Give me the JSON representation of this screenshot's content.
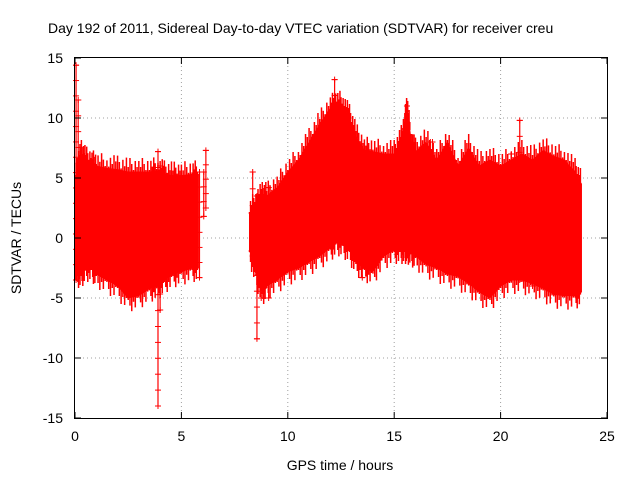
{
  "chart_data": {
    "type": "scatter",
    "title": "Day 192 of 2011, Sidereal Day-to-day VTEC variation (SDTVAR) for receiver creu",
    "xlabel": "GPS time / hours",
    "ylabel": "SDTVAR / TECUs",
    "xlim": [
      0,
      25
    ],
    "ylim": [
      -15,
      15
    ],
    "xticks": [
      0,
      5,
      10,
      15,
      20,
      25
    ],
    "yticks": [
      -15,
      -10,
      -5,
      0,
      5,
      10,
      15
    ],
    "grid": true,
    "marker": "+",
    "series_color": "#ff0000",
    "series": [
      {
        "name": "SDTVAR",
        "envelope": {
          "description": "dense band of '+' markers; upper/lower bounds per GPS hour",
          "segments": [
            {
              "x": [
                0.0,
                0.1,
                0.3,
                0.5,
                0.8,
                1.0,
                1.5,
                2.0,
                2.5,
                3.0,
                3.5,
                3.9,
                4.2,
                4.6,
                5.0,
                5.5,
                5.8
              ],
              "upper": [
                4.0,
                6.0,
                7.0,
                6.5,
                6.2,
                6.0,
                5.8,
                5.7,
                5.5,
                5.5,
                5.5,
                5.6,
                5.3,
                5.2,
                5.2,
                5.3,
                5.3
              ],
              "lower": [
                -2.0,
                -3.0,
                -3.0,
                -2.5,
                -2.5,
                -3.0,
                -3.5,
                -4.0,
                -5.0,
                -4.8,
                -4.2,
                -4.0,
                -3.5,
                -3.0,
                -2.8,
                -2.5,
                -2.5
              ]
            },
            {
              "x": [
                8.2,
                8.5,
                8.8,
                9.0,
                9.5,
                10.0,
                10.5,
                11.0,
                11.5,
                12.0,
                12.3,
                12.6,
                12.9,
                13.2,
                13.6,
                14.0,
                14.5,
                15.0,
                15.3,
                15.5,
                15.6,
                15.8,
                16.0,
                16.5,
                17.0,
                17.5,
                18.0,
                18.5,
                19.0,
                19.5,
                20.0,
                20.5,
                21.0,
                21.5,
                22.0,
                22.5,
                23.0,
                23.5,
                23.8
              ],
              "upper": [
                2.0,
                3.0,
                3.5,
                3.5,
                4.2,
                5.5,
                6.5,
                8.0,
                9.5,
                10.8,
                11.2,
                11.0,
                10.0,
                8.5,
                7.3,
                7.2,
                7.0,
                7.0,
                8.0,
                9.5,
                11.0,
                8.0,
                7.2,
                8.0,
                6.5,
                8.0,
                6.0,
                7.5,
                6.0,
                6.5,
                6.0,
                6.5,
                7.0,
                6.5,
                7.3,
                6.8,
                6.5,
                5.5,
                4.5
              ],
              "lower": [
                -1.0,
                -3.0,
                -4.5,
                -4.0,
                -3.5,
                -2.8,
                -2.5,
                -2.0,
                -1.5,
                -0.8,
                -0.3,
                -0.5,
                -1.0,
                -2.0,
                -2.5,
                -2.8,
                -1.5,
                -1.0,
                -1.0,
                -1.0,
                -1.0,
                -1.2,
                -1.5,
                -2.2,
                -2.5,
                -3.0,
                -3.2,
                -3.8,
                -4.5,
                -5.0,
                -4.0,
                -3.5,
                -3.5,
                -3.8,
                -4.2,
                -4.7,
                -4.8,
                -4.8,
                -4.5
              ]
            }
          ]
        },
        "spikes": [
          {
            "x": 0.05,
            "ymin": -3.5,
            "ymax": 14.4
          },
          {
            "x": 0.15,
            "ymin": -3.0,
            "ymax": 11.5
          },
          {
            "x": 3.9,
            "ymin": -14.0,
            "ymax": 7.2
          },
          {
            "x": 4.0,
            "ymin": -6.0,
            "ymax": 6.0
          },
          {
            "x": 5.85,
            "ymin": -3.3,
            "ymax": 5.5
          },
          {
            "x": 6.05,
            "ymin": 1.8,
            "ymax": 5.5
          },
          {
            "x": 6.15,
            "ymin": 2.5,
            "ymax": 7.3
          },
          {
            "x": 8.35,
            "ymin": -1.5,
            "ymax": 5.5
          },
          {
            "x": 8.55,
            "ymin": -8.4,
            "ymax": 3.5
          },
          {
            "x": 8.75,
            "ymin": -5.0,
            "ymax": 3.0
          },
          {
            "x": 9.1,
            "ymin": -5.0,
            "ymax": 4.2
          },
          {
            "x": 12.2,
            "ymin": 0.0,
            "ymax": 13.2
          },
          {
            "x": 13.5,
            "ymin": -3.3,
            "ymax": 6.5
          },
          {
            "x": 15.6,
            "ymin": -1.0,
            "ymax": 11.0
          },
          {
            "x": 16.7,
            "ymin": -1.5,
            "ymax": 8.0
          },
          {
            "x": 16.8,
            "ymin": -1.5,
            "ymax": 8.0
          },
          {
            "x": 20.5,
            "ymin": -3.5,
            "ymax": 7.0
          },
          {
            "x": 20.9,
            "ymin": -3.5,
            "ymax": 9.8
          },
          {
            "x": 21.5,
            "ymin": -4.0,
            "ymax": 5.0
          }
        ]
      }
    ]
  }
}
